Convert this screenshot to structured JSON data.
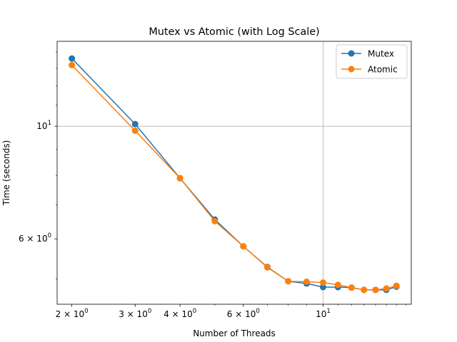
{
  "chart_data": {
    "type": "line",
    "title": "Mutex vs Atomic (with Log Scale)",
    "xlabel": "Number of Threads",
    "ylabel": "Time (seconds)",
    "xscale": "log",
    "yscale": "log",
    "xlim": [
      1.82,
      17.6
    ],
    "ylim": [
      4.46,
      14.7
    ],
    "grid": "major ticks only",
    "legend_position": "upper right",
    "x": [
      2,
      3,
      4,
      5,
      6,
      7,
      8,
      9,
      10,
      11,
      12,
      13,
      14,
      15,
      16
    ],
    "series": [
      {
        "name": "Mutex",
        "color": "#1f77b4",
        "values": [
          13.6,
          10.1,
          7.9,
          6.55,
          5.8,
          5.28,
          4.95,
          4.9,
          4.82,
          4.82,
          4.81,
          4.76,
          4.76,
          4.76,
          4.83
        ]
      },
      {
        "name": "Atomic",
        "color": "#ff7f0e",
        "values": [
          13.2,
          9.8,
          7.9,
          6.5,
          5.8,
          5.27,
          4.95,
          4.94,
          4.92,
          4.87,
          4.81,
          4.76,
          4.76,
          4.79,
          4.85
        ]
      }
    ],
    "x_ticks": [
      {
        "value": 2,
        "base": "2 × 10",
        "exp": "0"
      },
      {
        "value": 3,
        "base": "3 × 10",
        "exp": "0"
      },
      {
        "value": 4,
        "base": "4 × 10",
        "exp": "0"
      },
      {
        "value": 6,
        "base": "6 × 10",
        "exp": "0"
      },
      {
        "value": 10,
        "base": "10",
        "exp": "1"
      }
    ],
    "y_ticks": [
      {
        "value": 6,
        "base": "6 × 10",
        "exp": "0"
      },
      {
        "value": 10,
        "base": "10",
        "exp": "1"
      }
    ]
  }
}
